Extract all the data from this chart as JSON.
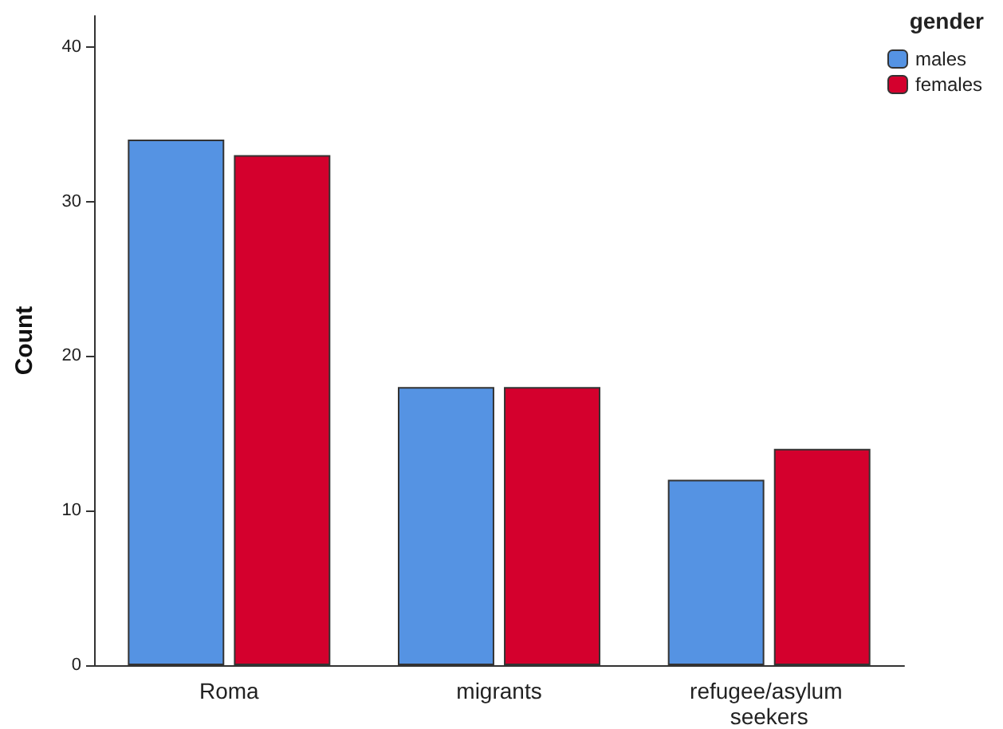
{
  "chart_data": {
    "type": "bar",
    "ylabel": "Count",
    "legend_title": "gender",
    "categories": [
      "Roma",
      "migrants",
      "refugee/asylum seekers"
    ],
    "series": [
      {
        "name": "males",
        "color": "#5593e3",
        "values": [
          34,
          18,
          12
        ]
      },
      {
        "name": "females",
        "color": "#d4002d",
        "values": [
          33,
          18,
          14
        ]
      }
    ],
    "ylim": [
      0,
      42
    ],
    "yticks": [
      0,
      10,
      20,
      30,
      40
    ],
    "grid": false,
    "legend": "top right"
  }
}
